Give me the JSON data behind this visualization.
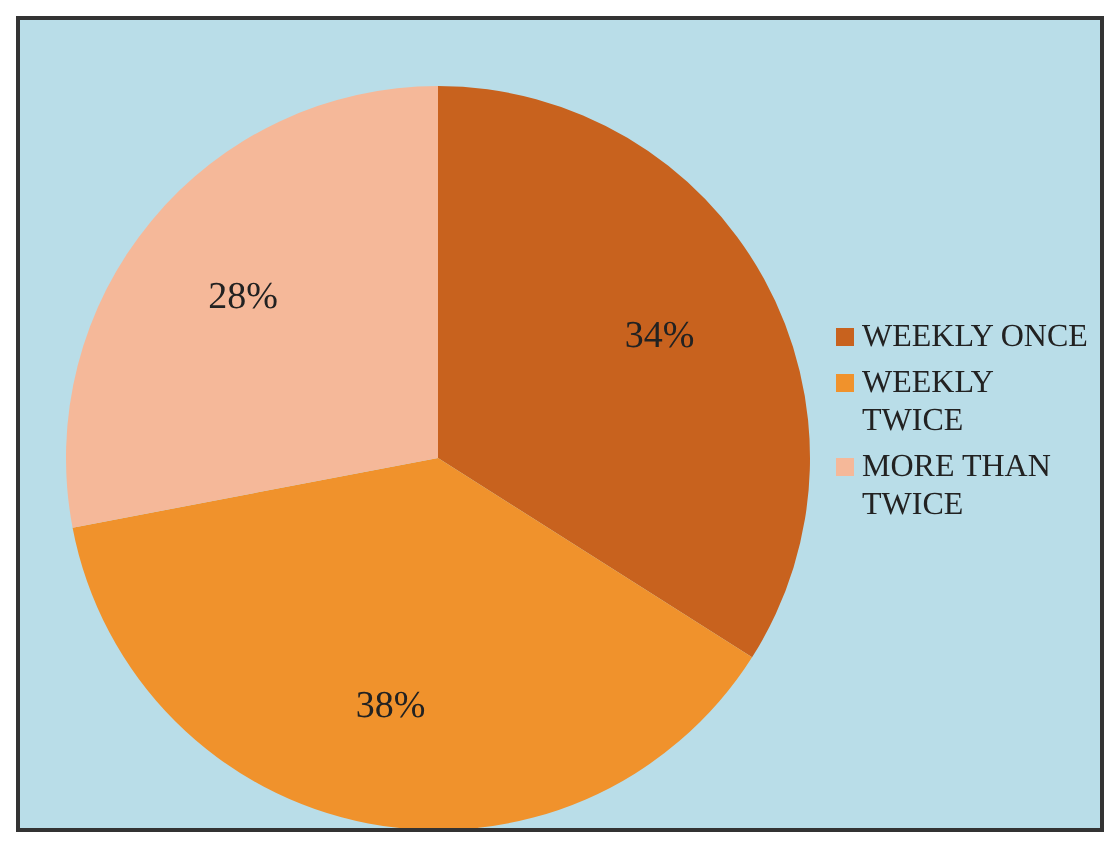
{
  "chart_data": {
    "type": "pie",
    "categories": [
      "WEEKLY ONCE",
      "WEEKLY TWICE",
      "MORE THAN TWICE"
    ],
    "values": [
      34,
      38,
      28
    ],
    "colors": [
      "#c8621e",
      "#f0922c",
      "#f5b899"
    ],
    "value_labels": [
      "34%",
      "38%",
      "28%"
    ],
    "legend": "right"
  }
}
